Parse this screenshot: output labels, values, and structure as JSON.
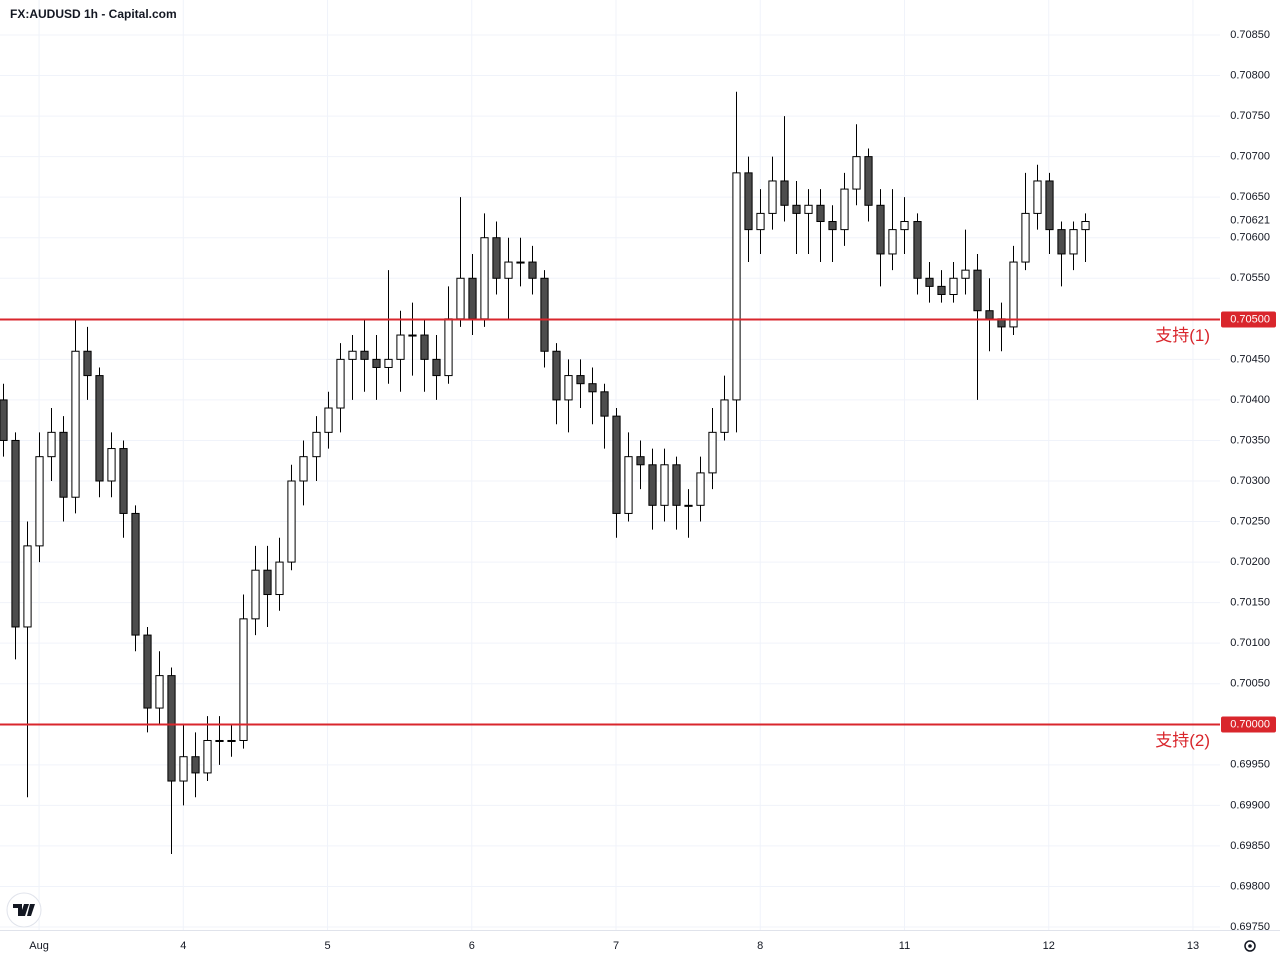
{
  "chart_data": {
    "type": "candlestick",
    "title": "FX:AUDUSD 1h - Capital.com",
    "up_color": "#ffffff",
    "down_color": "#4d4d4d",
    "outline_color": "#000000",
    "grid": true,
    "xlim": [
      -6.5,
      196.5
    ],
    "xticks": [
      {
        "value": 0,
        "label": "Aug"
      },
      {
        "value": 24,
        "label": "4"
      },
      {
        "value": 48,
        "label": "5"
      },
      {
        "value": 72,
        "label": "6"
      },
      {
        "value": 96,
        "label": "7"
      },
      {
        "value": 120,
        "label": "8"
      },
      {
        "value": 144,
        "label": "11"
      },
      {
        "value": 168,
        "label": "12"
      },
      {
        "value": 192,
        "label": "13"
      }
    ],
    "ylim": [
      0.6975,
      0.7085
    ],
    "yticks": [
      {
        "value": 0.7085,
        "label": "0.70850"
      },
      {
        "value": 0.708,
        "label": "0.70800"
      },
      {
        "value": 0.7075,
        "label": "0.70750"
      },
      {
        "value": 0.707,
        "label": "0.70700"
      },
      {
        "value": 0.7065,
        "label": "0.70650"
      },
      {
        "value": 0.706,
        "label": "0.70600"
      },
      {
        "value": 0.7055,
        "label": "0.70550"
      },
      {
        "value": 0.7045,
        "label": "0.70450"
      },
      {
        "value": 0.704,
        "label": "0.70400"
      },
      {
        "value": 0.7035,
        "label": "0.70350"
      },
      {
        "value": 0.703,
        "label": "0.70300"
      },
      {
        "value": 0.7025,
        "label": "0.70250"
      },
      {
        "value": 0.702,
        "label": "0.70200"
      },
      {
        "value": 0.7015,
        "label": "0.70150"
      },
      {
        "value": 0.701,
        "label": "0.70100"
      },
      {
        "value": 0.7005,
        "label": "0.70050"
      },
      {
        "value": 0.6995,
        "label": "0.69950"
      },
      {
        "value": 0.699,
        "label": "0.69900"
      },
      {
        "value": 0.6985,
        "label": "0.69850"
      },
      {
        "value": 0.698,
        "label": "0.69800"
      },
      {
        "value": 0.6975,
        "label": "0.69750"
      }
    ],
    "levels": [
      {
        "value": 0.705,
        "label": "0.70500",
        "text": "支持(1)",
        "color": "#d9262c"
      },
      {
        "value": 0.7,
        "label": "0.70000",
        "text": "支持(2)",
        "color": "#d9262c"
      }
    ],
    "last_price": {
      "value": 0.70621,
      "label": "0.70621"
    },
    "x": [
      -6,
      -4,
      -2,
      0,
      2,
      4,
      6,
      8,
      10,
      12,
      14,
      16,
      18,
      20,
      22,
      24,
      26,
      28,
      30,
      32,
      34,
      36,
      38,
      40,
      42,
      44,
      46,
      48,
      50,
      52,
      54,
      56,
      58,
      60,
      62,
      64,
      66,
      68,
      70,
      72,
      74,
      76,
      78,
      80,
      82,
      84,
      86,
      88,
      90,
      92,
      94,
      96,
      98,
      100,
      102,
      104,
      106,
      108,
      110,
      112,
      114,
      116,
      118,
      120,
      122,
      124,
      126,
      128,
      130,
      132,
      134,
      136,
      138,
      140,
      142,
      144,
      146,
      148,
      150,
      152,
      154,
      156,
      158,
      160,
      162,
      164,
      166,
      168,
      170,
      172,
      174
    ],
    "candles": [
      [
        0.704,
        0.7042,
        0.7033,
        0.7035
      ],
      [
        0.7035,
        0.7036,
        0.7008,
        0.7012
      ],
      [
        0.7012,
        0.7025,
        0.6991,
        0.7022
      ],
      [
        0.7022,
        0.7036,
        0.702,
        0.7033
      ],
      [
        0.7033,
        0.7039,
        0.703,
        0.7036
      ],
      [
        0.7036,
        0.7038,
        0.7025,
        0.7028
      ],
      [
        0.7028,
        0.705,
        0.7026,
        0.7046
      ],
      [
        0.7046,
        0.7049,
        0.704,
        0.7043
      ],
      [
        0.7043,
        0.7044,
        0.7028,
        0.703
      ],
      [
        0.703,
        0.7036,
        0.7028,
        0.7034
      ],
      [
        0.7034,
        0.7035,
        0.7023,
        0.7026
      ],
      [
        0.7026,
        0.7027,
        0.7009,
        0.7011
      ],
      [
        0.7011,
        0.7012,
        0.6999,
        0.7002
      ],
      [
        0.7002,
        0.7009,
        0.7,
        0.7006
      ],
      [
        0.7006,
        0.7007,
        0.6984,
        0.6993
      ],
      [
        0.6993,
        0.7,
        0.699,
        0.6996
      ],
      [
        0.6996,
        0.6999,
        0.6991,
        0.6994
      ],
      [
        0.6994,
        0.7001,
        0.6993,
        0.6998
      ],
      [
        0.6998,
        0.7001,
        0.6995,
        0.6998
      ],
      [
        0.6998,
        0.7,
        0.6996,
        0.6998
      ],
      [
        0.6998,
        0.7016,
        0.6997,
        0.7013
      ],
      [
        0.7013,
        0.7022,
        0.7011,
        0.7019
      ],
      [
        0.7019,
        0.7022,
        0.7012,
        0.7016
      ],
      [
        0.7016,
        0.7023,
        0.7014,
        0.702
      ],
      [
        0.702,
        0.7032,
        0.7019,
        0.703
      ],
      [
        0.703,
        0.7035,
        0.7027,
        0.7033
      ],
      [
        0.7033,
        0.7038,
        0.703,
        0.7036
      ],
      [
        0.7036,
        0.7041,
        0.7034,
        0.7039
      ],
      [
        0.7039,
        0.7047,
        0.7036,
        0.7045
      ],
      [
        0.7045,
        0.7048,
        0.704,
        0.7046
      ],
      [
        0.7046,
        0.705,
        0.7041,
        0.7045
      ],
      [
        0.7045,
        0.7048,
        0.704,
        0.7044
      ],
      [
        0.7044,
        0.7056,
        0.7042,
        0.7045
      ],
      [
        0.7045,
        0.7051,
        0.7041,
        0.7048
      ],
      [
        0.7048,
        0.7052,
        0.7043,
        0.7048
      ],
      [
        0.7048,
        0.705,
        0.7041,
        0.7045
      ],
      [
        0.7045,
        0.7048,
        0.704,
        0.7043
      ],
      [
        0.7043,
        0.7054,
        0.7042,
        0.705
      ],
      [
        0.705,
        0.7065,
        0.7049,
        0.7055
      ],
      [
        0.7055,
        0.7058,
        0.7048,
        0.705
      ],
      [
        0.705,
        0.7063,
        0.7049,
        0.706
      ],
      [
        0.706,
        0.7062,
        0.7053,
        0.7055
      ],
      [
        0.7055,
        0.706,
        0.705,
        0.7057
      ],
      [
        0.7057,
        0.706,
        0.7054,
        0.7057
      ],
      [
        0.7057,
        0.7059,
        0.7053,
        0.7055
      ],
      [
        0.7055,
        0.7056,
        0.7044,
        0.7046
      ],
      [
        0.7046,
        0.7047,
        0.7037,
        0.704
      ],
      [
        0.704,
        0.7045,
        0.7036,
        0.7043
      ],
      [
        0.7043,
        0.7045,
        0.7039,
        0.7042
      ],
      [
        0.7042,
        0.7044,
        0.7037,
        0.7041
      ],
      [
        0.7041,
        0.7042,
        0.7034,
        0.7038
      ],
      [
        0.7038,
        0.7039,
        0.7023,
        0.7026
      ],
      [
        0.7026,
        0.7036,
        0.7025,
        0.7033
      ],
      [
        0.7033,
        0.7035,
        0.7029,
        0.7032
      ],
      [
        0.7032,
        0.7034,
        0.7024,
        0.7027
      ],
      [
        0.7027,
        0.7034,
        0.7025,
        0.7032
      ],
      [
        0.7032,
        0.7033,
        0.7024,
        0.7027
      ],
      [
        0.7027,
        0.7029,
        0.7023,
        0.7027
      ],
      [
        0.7027,
        0.7033,
        0.7025,
        0.7031
      ],
      [
        0.7031,
        0.7039,
        0.7029,
        0.7036
      ],
      [
        0.7036,
        0.7043,
        0.7035,
        0.704
      ],
      [
        0.704,
        0.7078,
        0.7036,
        0.7068
      ],
      [
        0.7068,
        0.707,
        0.7057,
        0.7061
      ],
      [
        0.7061,
        0.7066,
        0.7058,
        0.7063
      ],
      [
        0.7063,
        0.707,
        0.7061,
        0.7067
      ],
      [
        0.7067,
        0.7075,
        0.7062,
        0.7064
      ],
      [
        0.7064,
        0.7067,
        0.7058,
        0.7063
      ],
      [
        0.7063,
        0.7066,
        0.7058,
        0.7064
      ],
      [
        0.7064,
        0.7066,
        0.7057,
        0.7062
      ],
      [
        0.7062,
        0.7064,
        0.7057,
        0.7061
      ],
      [
        0.7061,
        0.7068,
        0.7059,
        0.7066
      ],
      [
        0.7066,
        0.7074,
        0.7064,
        0.707
      ],
      [
        0.707,
        0.7071,
        0.7062,
        0.7064
      ],
      [
        0.7064,
        0.7066,
        0.7054,
        0.7058
      ],
      [
        0.7058,
        0.7066,
        0.7056,
        0.7061
      ],
      [
        0.7061,
        0.7065,
        0.7058,
        0.7062
      ],
      [
        0.7062,
        0.7063,
        0.7053,
        0.7055
      ],
      [
        0.7055,
        0.7057,
        0.7052,
        0.7054
      ],
      [
        0.7054,
        0.7056,
        0.7052,
        0.7053
      ],
      [
        0.7053,
        0.7057,
        0.7052,
        0.7055
      ],
      [
        0.7055,
        0.7061,
        0.7053,
        0.7056
      ],
      [
        0.7056,
        0.7058,
        0.704,
        0.7051
      ],
      [
        0.7051,
        0.7055,
        0.7046,
        0.705
      ],
      [
        0.705,
        0.7052,
        0.7046,
        0.7049
      ],
      [
        0.7049,
        0.7059,
        0.7048,
        0.7057
      ],
      [
        0.7057,
        0.7068,
        0.7056,
        0.7063
      ],
      [
        0.7063,
        0.7069,
        0.7061,
        0.7067
      ],
      [
        0.7067,
        0.7068,
        0.7058,
        0.7061
      ],
      [
        0.7061,
        0.7062,
        0.7054,
        0.7058
      ],
      [
        0.7058,
        0.7062,
        0.7056,
        0.7061
      ],
      [
        0.7061,
        0.7063,
        0.7057,
        0.7062
      ]
    ]
  }
}
